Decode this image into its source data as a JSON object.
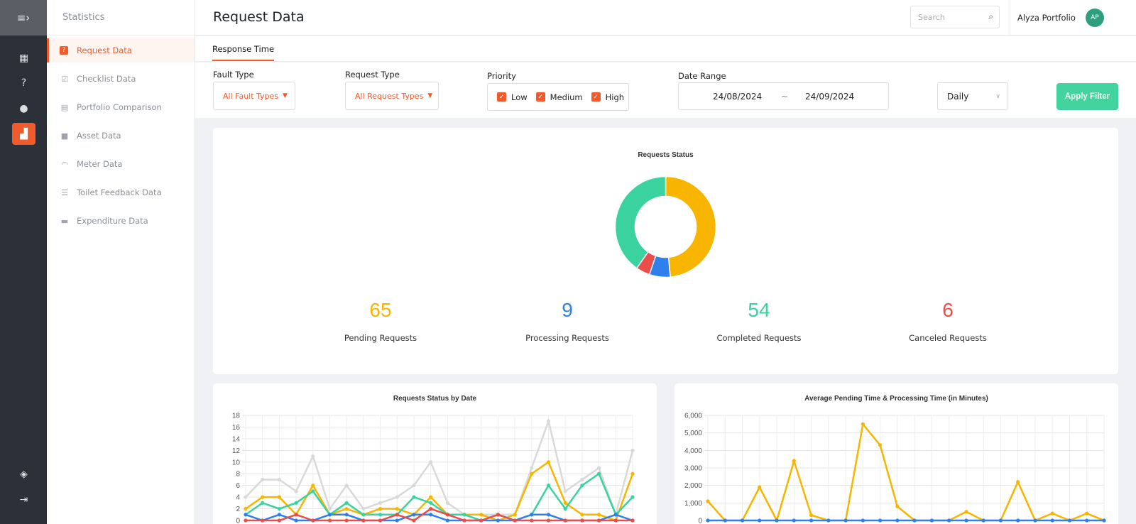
{
  "sidebar": {
    "section_title": "Statistics",
    "items": [
      {
        "label": "Request Data",
        "icon": "question-box-icon",
        "active": true
      },
      {
        "label": "Checklist Data",
        "icon": "clipboard-check-icon"
      },
      {
        "label": "Portfolio Comparison",
        "icon": "briefcase-icon"
      },
      {
        "label": "Asset Data",
        "icon": "box-icon"
      },
      {
        "label": "Meter Data",
        "icon": "gauge-icon"
      },
      {
        "label": "Toilet Feedback Data",
        "icon": "list-icon"
      },
      {
        "label": "Expenditure Data",
        "icon": "wallet-icon"
      }
    ]
  },
  "rail": {
    "icons": [
      "menu-collapse-icon",
      "dashboard-icon",
      "question-icon",
      "user-icon",
      "statistics-icon",
      "package-icon",
      "logout-icon"
    ]
  },
  "header": {
    "title": "Request Data",
    "search_placeholder": "Search",
    "user_name": "Alyza Portfolio",
    "user_initials": "AP"
  },
  "tabs": [
    {
      "label": "Response Time",
      "active": true
    }
  ],
  "filters": {
    "fault_type": {
      "label": "Fault Type",
      "value": "All Fault Types"
    },
    "request_type": {
      "label": "Request Type",
      "value": "All Request Types"
    },
    "priority": {
      "label": "Priority",
      "options": [
        {
          "label": "Low",
          "checked": true
        },
        {
          "label": "Medium",
          "checked": true
        },
        {
          "label": "High",
          "checked": true
        }
      ]
    },
    "date_range": {
      "label": "Date Range",
      "start": "24/08/2024",
      "separator": "~",
      "end": "24/09/2024"
    },
    "interval": {
      "value": "Daily"
    },
    "apply_label": "Apply Filter"
  },
  "colors": {
    "accent": "#f15a2b",
    "pending": "#f7b500",
    "processing": "#2f80ed",
    "completed": "#3ad29f",
    "canceled": "#eb4d4b",
    "total": "#d9d9d9"
  },
  "status_summary": [
    {
      "value": "65",
      "label": "Pending Requests",
      "color": "#f7b500"
    },
    {
      "value": "9",
      "label": "Processing Requests",
      "color": "#2f80ed"
    },
    {
      "value": "54",
      "label": "Completed Requests",
      "color": "#3ad29f"
    },
    {
      "value": "6",
      "label": "Canceled Requests",
      "color": "#eb4d4b"
    }
  ],
  "chart_data": [
    {
      "type": "pie",
      "title": "Requests Status",
      "categories": [
        "Pending",
        "Processing",
        "Canceled",
        "Completed"
      ],
      "values": [
        65,
        9,
        6,
        54
      ],
      "colors": [
        "#f7b500",
        "#2f80ed",
        "#eb4d4b",
        "#3ad29f"
      ]
    },
    {
      "type": "line",
      "title": "Requests Status by Date",
      "ylim": [
        0,
        18
      ],
      "yticks": [
        0,
        2,
        4,
        6,
        8,
        10,
        12,
        14,
        16,
        18
      ],
      "points": 24,
      "series": [
        {
          "color": "#d9d9d9",
          "values": [
            4,
            7,
            7,
            5,
            11,
            2,
            6,
            2,
            3,
            4,
            6,
            10,
            3,
            1,
            1,
            1,
            1,
            9,
            17,
            5,
            7,
            9,
            1,
            12
          ]
        },
        {
          "color": "#f7b500",
          "values": [
            2,
            4,
            4,
            1,
            6,
            1,
            2,
            1,
            2,
            2,
            1,
            4,
            1,
            1,
            1,
            0,
            1,
            8,
            10,
            3,
            1,
            1,
            0,
            8
          ]
        },
        {
          "color": "#3ad29f",
          "values": [
            1,
            3,
            2,
            3,
            5,
            1,
            3,
            1,
            1,
            1,
            4,
            3,
            1,
            1,
            0,
            1,
            0,
            1,
            6,
            2,
            6,
            8,
            1,
            4
          ]
        },
        {
          "color": "#2f80ed",
          "values": [
            1,
            0,
            1,
            0,
            0,
            1,
            1,
            0,
            0,
            0,
            1,
            1,
            0,
            0,
            0,
            0,
            0,
            1,
            1,
            0,
            0,
            0,
            1,
            0
          ]
        },
        {
          "color": "#eb4d4b",
          "values": [
            0,
            0,
            0,
            1,
            0,
            0,
            0,
            0,
            0,
            1,
            0,
            2,
            1,
            0,
            0,
            1,
            0,
            0,
            0,
            0,
            0,
            0,
            0,
            0
          ]
        }
      ]
    },
    {
      "type": "line",
      "title": "Average Pending Time & Processing Time (in Minutes)",
      "ylim": [
        0,
        6000
      ],
      "yticks": [
        "0",
        "1,000",
        "2,000",
        "3,000",
        "4,000",
        "5,000",
        "6,000"
      ],
      "points": 24,
      "series": [
        {
          "color": "#f7b500",
          "values": [
            1100,
            0,
            0,
            1900,
            0,
            3400,
            300,
            0,
            0,
            5500,
            4300,
            800,
            0,
            0,
            0,
            500,
            0,
            0,
            2200,
            0,
            400,
            0,
            400,
            0
          ]
        },
        {
          "color": "#2f80ed",
          "values": [
            0,
            0,
            0,
            0,
            0,
            0,
            0,
            0,
            0,
            0,
            0,
            0,
            0,
            0,
            0,
            0,
            0,
            0,
            0,
            0,
            0,
            0,
            0,
            0
          ]
        }
      ]
    }
  ]
}
